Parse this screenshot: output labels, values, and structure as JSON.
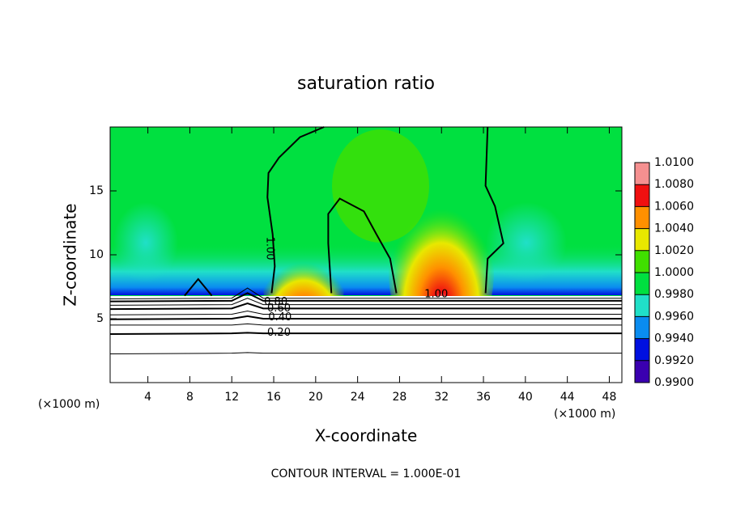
{
  "chart_data": {
    "type": "contour",
    "title": "saturation ratio",
    "xlabel": "X-coordinate",
    "ylabel": "Z-coordinate",
    "xunit": "(×1000 m)",
    "yunit": "(×1000 m)",
    "footnote": "CONTOUR INTERVAL = 1.000E-01",
    "xlim": [
      0.4,
      49.2
    ],
    "ylim": [
      0,
      20
    ],
    "xticks": [
      4,
      8,
      12,
      16,
      20,
      24,
      28,
      32,
      36,
      40,
      44,
      48
    ],
    "yticks": [
      5,
      10,
      15
    ],
    "colorbar": {
      "ticks": [
        {
          "value": 0.99,
          "label": "0.9900"
        },
        {
          "value": 0.992,
          "label": "0.9920"
        },
        {
          "value": 0.994,
          "label": "0.9940"
        },
        {
          "value": 0.996,
          "label": "0.9960"
        },
        {
          "value": 0.998,
          "label": "0.9980"
        },
        {
          "value": 1.0,
          "label": "1.0000"
        },
        {
          "value": 1.002,
          "label": "1.0020"
        },
        {
          "value": 1.004,
          "label": "1.0040"
        },
        {
          "value": 1.006,
          "label": "1.0060"
        },
        {
          "value": 1.008,
          "label": "1.0080"
        },
        {
          "value": 1.01,
          "label": "1.0100"
        }
      ],
      "colors": [
        "#3a00b0",
        "#0010e0",
        "#0a8cf0",
        "#20e0c8",
        "#00e040",
        "#40e000",
        "#e8e800",
        "#ff9000",
        "#f01010",
        "#f59090"
      ]
    },
    "contours": [
      {
        "level": 1.0,
        "x": [
          20.8,
          18.5,
          16.5,
          15.5,
          15.4,
          15.9,
          16.1,
          15.8
        ],
        "y": [
          20,
          19.2,
          17.6,
          16.4,
          14.5,
          11.6,
          9.1,
          7.0
        ]
      },
      {
        "level": 1.0,
        "x": [
          21.5,
          21.2,
          21.2,
          22.3,
          24.6,
          25.8,
          27.1,
          27.7
        ],
        "y": [
          7.0,
          10.9,
          13.2,
          14.4,
          13.4,
          11.6,
          9.7,
          7.0
        ]
      },
      {
        "level": 1.0,
        "x": [
          36.2,
          36.4,
          37.9,
          37.1,
          36.2,
          36.4
        ],
        "y": [
          7.0,
          9.7,
          10.9,
          13.8,
          15.4,
          20
        ]
      },
      {
        "level": 1.0,
        "x": [
          7.5,
          8.8,
          10.1
        ],
        "y": [
          6.8,
          8.1,
          6.8
        ]
      },
      {
        "level": 0.9,
        "x": [
          0.4,
          12,
          13.5,
          15,
          49.2
        ],
        "y": [
          6.55,
          6.6,
          7.4,
          6.6,
          6.6
        ]
      },
      {
        "level": 0.8,
        "x": [
          0.4,
          12,
          13.5,
          15,
          49.2
        ],
        "y": [
          6.35,
          6.4,
          7.0,
          6.4,
          6.4
        ]
      },
      {
        "level": 0.7,
        "x": [
          0.4,
          12,
          13.5,
          15,
          49.2
        ],
        "y": [
          6.05,
          6.1,
          6.6,
          6.1,
          6.1
        ]
      },
      {
        "level": 0.6,
        "x": [
          0.4,
          12,
          13.5,
          15,
          49.2
        ],
        "y": [
          5.75,
          5.8,
          6.2,
          5.8,
          5.8
        ]
      },
      {
        "level": 0.5,
        "x": [
          0.4,
          12,
          13.5,
          15,
          49.2
        ],
        "y": [
          5.3,
          5.35,
          5.6,
          5.35,
          5.35
        ]
      },
      {
        "level": 0.4,
        "x": [
          0.4,
          12,
          13.5,
          15,
          49.2
        ],
        "y": [
          4.95,
          5.0,
          5.2,
          5.0,
          5.0
        ]
      },
      {
        "level": 0.3,
        "x": [
          0.4,
          12,
          13.5,
          15,
          49.2
        ],
        "y": [
          4.5,
          4.5,
          4.6,
          4.5,
          4.5
        ]
      },
      {
        "level": 0.2,
        "x": [
          0.4,
          12,
          13.5,
          15,
          49.2
        ],
        "y": [
          3.8,
          3.85,
          3.9,
          3.85,
          3.85
        ]
      },
      {
        "level": 0.1,
        "x": [
          0.4,
          12,
          13.5,
          15,
          49.2
        ],
        "y": [
          2.25,
          2.3,
          2.35,
          2.3,
          2.3
        ]
      }
    ],
    "contour_labels": [
      {
        "value": 1.0,
        "label": "1.00",
        "x": 15.6,
        "y": 10.5,
        "rotate": true
      },
      {
        "value": 1.0,
        "label": "1.00",
        "x": 31.5,
        "y": 6.9
      },
      {
        "value": 0.8,
        "label": "0.80",
        "x": 16.2,
        "y": 6.3
      },
      {
        "value": 0.6,
        "label": "0.60",
        "x": 16.5,
        "y": 5.8
      },
      {
        "value": 0.4,
        "label": "0.40",
        "x": 16.6,
        "y": 5.1
      },
      {
        "value": 0.2,
        "label": "0.20",
        "x": 16.5,
        "y": 3.9
      }
    ]
  }
}
